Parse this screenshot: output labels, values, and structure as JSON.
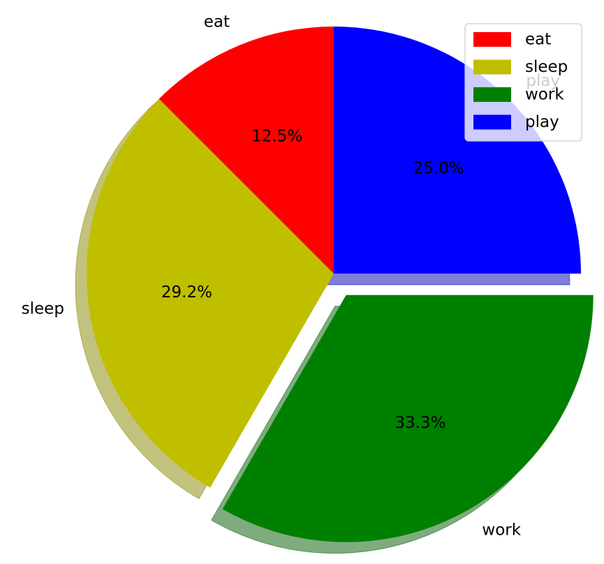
{
  "chart_data": {
    "type": "pie",
    "categories": [
      "eat",
      "sleep",
      "work",
      "play"
    ],
    "values": [
      3,
      7,
      8,
      6
    ],
    "percent_labels": [
      "12.5%",
      "29.2%",
      "33.3%",
      "25.0%"
    ],
    "colors": [
      "#ff0000",
      "#bfbf00",
      "#008000",
      "#0000ff"
    ],
    "explode": [
      0,
      0,
      0.1,
      0
    ],
    "start_angle_deg": 90,
    "direction": "counterclockwise",
    "shadow": true,
    "title": "",
    "legend": {
      "placement": "top-right",
      "entries": [
        "eat",
        "sleep",
        "work",
        "play"
      ]
    }
  }
}
